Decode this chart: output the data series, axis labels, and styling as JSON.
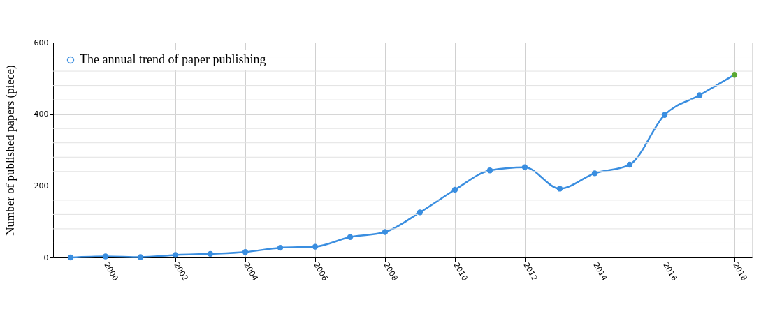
{
  "chart_data": {
    "type": "line",
    "ylabel": "Number of published papers (piece)",
    "x": [
      1999,
      2000,
      2001,
      2002,
      2003,
      2004,
      2005,
      2006,
      2007,
      2008,
      2009,
      2010,
      2011,
      2012,
      2013,
      2014,
      2015,
      2016,
      2017,
      2018
    ],
    "series": [
      {
        "name": "The annual trend of paper publishing",
        "color": "#3a8ee0",
        "values": [
          0,
          3,
          1,
          7,
          10,
          15,
          27,
          30,
          57,
          71,
          126,
          189,
          243,
          252,
          192,
          235,
          259,
          398,
          453,
          510
        ],
        "colors": [
          "#3a8ee0",
          "#3a8ee0",
          "#3a8ee0",
          "#3a8ee0",
          "#3a8ee0",
          "#3a8ee0",
          "#3a8ee0",
          "#3a8ee0",
          "#3a8ee0",
          "#3a8ee0",
          "#3a8ee0",
          "#3a8ee0",
          "#3a8ee0",
          "#3a8ee0",
          "#3a8ee0",
          "#3a8ee0",
          "#3a8ee0",
          "#3a8ee0",
          "#3a8ee0",
          "#5aa832"
        ]
      }
    ],
    "xlim": [
      1998.5,
      2018.5
    ],
    "xticks": [
      2000,
      2002,
      2004,
      2006,
      2008,
      2010,
      2012,
      2014,
      2016,
      2018
    ],
    "ylim": [
      0,
      600
    ],
    "yticks": [
      0,
      {
        "value": 40,
        "label": null
      },
      {
        "value": 80,
        "label": null
      },
      {
        "value": 120,
        "label": null
      },
      {
        "value": 160,
        "label": null
      },
      200,
      {
        "value": 240,
        "label": null
      },
      {
        "value": 280,
        "label": null
      },
      {
        "value": 320,
        "label": null
      },
      {
        "value": 360,
        "label": null
      },
      400,
      {
        "value": 440,
        "label": null
      },
      {
        "value": 480,
        "label": null
      },
      {
        "value": 520,
        "label": null
      },
      {
        "value": 560,
        "label": null
      },
      600
    ],
    "grid": true,
    "legend": "top left",
    "marker": "circle",
    "line_style": "solid"
  }
}
